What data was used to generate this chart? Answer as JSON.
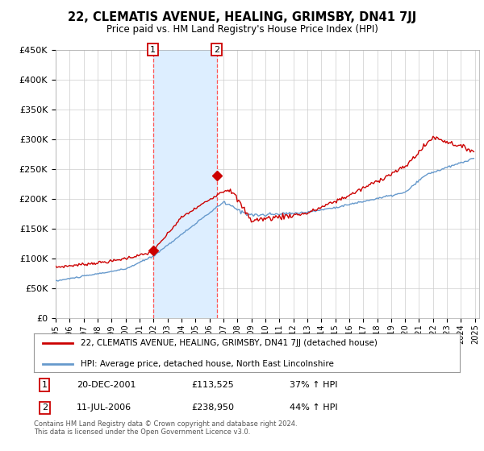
{
  "title": "22, CLEMATIS AVENUE, HEALING, GRIMSBY, DN41 7JJ",
  "subtitle": "Price paid vs. HM Land Registry's House Price Index (HPI)",
  "legend_line1": "22, CLEMATIS AVENUE, HEALING, GRIMSBY, DN41 7JJ (detached house)",
  "legend_line2": "HPI: Average price, detached house, North East Lincolnshire",
  "annotation1_date": "20-DEC-2001",
  "annotation1_price": "£113,525",
  "annotation1_hpi": "37% ↑ HPI",
  "annotation2_date": "11-JUL-2006",
  "annotation2_price": "£238,950",
  "annotation2_hpi": "44% ↑ HPI",
  "footer": "Contains HM Land Registry data © Crown copyright and database right 2024.\nThis data is licensed under the Open Government Licence v3.0.",
  "hpi_color": "#6699cc",
  "price_color": "#cc0000",
  "marker_color": "#cc0000",
  "shading_color": "#ddeeff",
  "vline_color": "#ff5555",
  "grid_color": "#cccccc",
  "bg_color": "#ffffff",
  "sale1_date_num": 2001.97,
  "sale1_price": 113525,
  "sale2_date_num": 2006.53,
  "sale2_price": 238950
}
